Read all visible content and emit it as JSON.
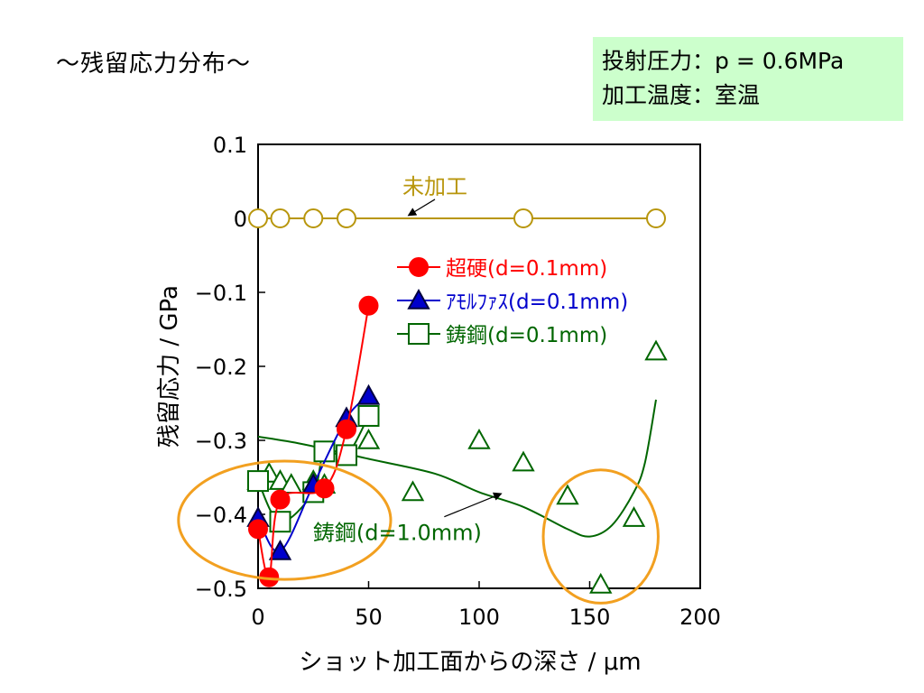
{
  "page_title": "～残留応力分布～",
  "conditions": {
    "line1": "投射圧力：p = 0.6MPa",
    "line2": "加工温度：室温"
  },
  "chart_data": {
    "type": "scatter",
    "xlabel": "ショット加工面からの深さ / μm",
    "ylabel": "残留応力 / GPa",
    "xlim": [
      0,
      200
    ],
    "ylim": [
      -0.5,
      0.1
    ],
    "x_ticks": [
      0,
      50,
      100,
      150,
      200
    ],
    "x_tick_labels": [
      "0",
      "50",
      "100",
      "150",
      "200"
    ],
    "y_ticks": [
      0.1,
      0,
      -0.1,
      -0.2,
      -0.3,
      -0.4,
      -0.5
    ],
    "y_tick_labels": [
      "0.1",
      "0",
      "−0.1",
      "−0.2",
      "−0.3",
      "−0.4",
      "−0.5"
    ],
    "legend_placement": "center-right",
    "series": [
      {
        "name": "未加工",
        "color": "#b8960c",
        "marker": "open-circle",
        "line": "straight",
        "x": [
          0,
          10,
          25,
          40,
          120,
          180
        ],
        "y": [
          0,
          0,
          0,
          0,
          0,
          0
        ]
      },
      {
        "name": "超硬(d=0.1mm)",
        "color": "#ff0000",
        "marker": "filled-circle",
        "line": "smooth",
        "x": [
          0,
          5,
          10,
          30,
          40,
          50
        ],
        "y": [
          -0.42,
          -0.485,
          -0.38,
          -0.365,
          -0.285,
          -0.118
        ]
      },
      {
        "name": "ｱﾓﾙﾌｧｽ(d=0.1mm)",
        "color": "#0000cc",
        "marker": "filled-triangle",
        "line": "smooth",
        "x": [
          0,
          10,
          25,
          40,
          50
        ],
        "y": [
          -0.405,
          -0.45,
          -0.36,
          -0.27,
          -0.24
        ]
      },
      {
        "name": "鋳鋼(d=0.1mm)",
        "color": "#006600",
        "marker": "open-square",
        "line": "smooth",
        "x": [
          0,
          10,
          25,
          30,
          40,
          50
        ],
        "y": [
          -0.355,
          -0.41,
          -0.37,
          -0.315,
          -0.32,
          -0.267
        ]
      },
      {
        "name": "鋳鋼(d=1.0mm)",
        "color": "#006600",
        "marker": "open-triangle",
        "line": "none",
        "x": [
          0,
          5,
          10,
          15,
          25,
          30,
          50,
          70,
          100,
          120,
          140,
          155,
          170,
          180
        ],
        "y": [
          -0.355,
          -0.345,
          -0.355,
          -0.36,
          -0.355,
          -0.36,
          -0.3,
          -0.37,
          -0.3,
          -0.33,
          -0.375,
          -0.495,
          -0.405,
          -0.18
        ]
      },
      {
        "name": "",
        "color": "#006600",
        "marker": "none",
        "line": "smooth",
        "x": [
          0,
          20,
          50,
          80,
          100,
          120,
          140,
          150,
          160,
          170,
          175,
          180
        ],
        "y": [
          -0.295,
          -0.305,
          -0.325,
          -0.345,
          -0.37,
          -0.39,
          -0.42,
          -0.43,
          -0.415,
          -0.37,
          -0.33,
          -0.245
        ]
      }
    ],
    "annotations": [
      {
        "text": "未加工",
        "color": "#b8960c",
        "x": 80,
        "y": 0.033,
        "arrow_to": [
          68,
          0.004
        ]
      },
      {
        "text": "鋳鋼(d=1.0mm)",
        "color": "#006600",
        "x": 63,
        "y": -0.435,
        "arrow_to": [
          110,
          -0.372
        ]
      }
    ],
    "highlights": [
      {
        "color": "#f2a020",
        "cx": 12,
        "cy": -0.408,
        "rx": 48,
        "ry": 0.08
      },
      {
        "color": "#f2a020",
        "cx": 155,
        "cy": -0.43,
        "rx": 26,
        "ry": 0.09
      }
    ]
  }
}
